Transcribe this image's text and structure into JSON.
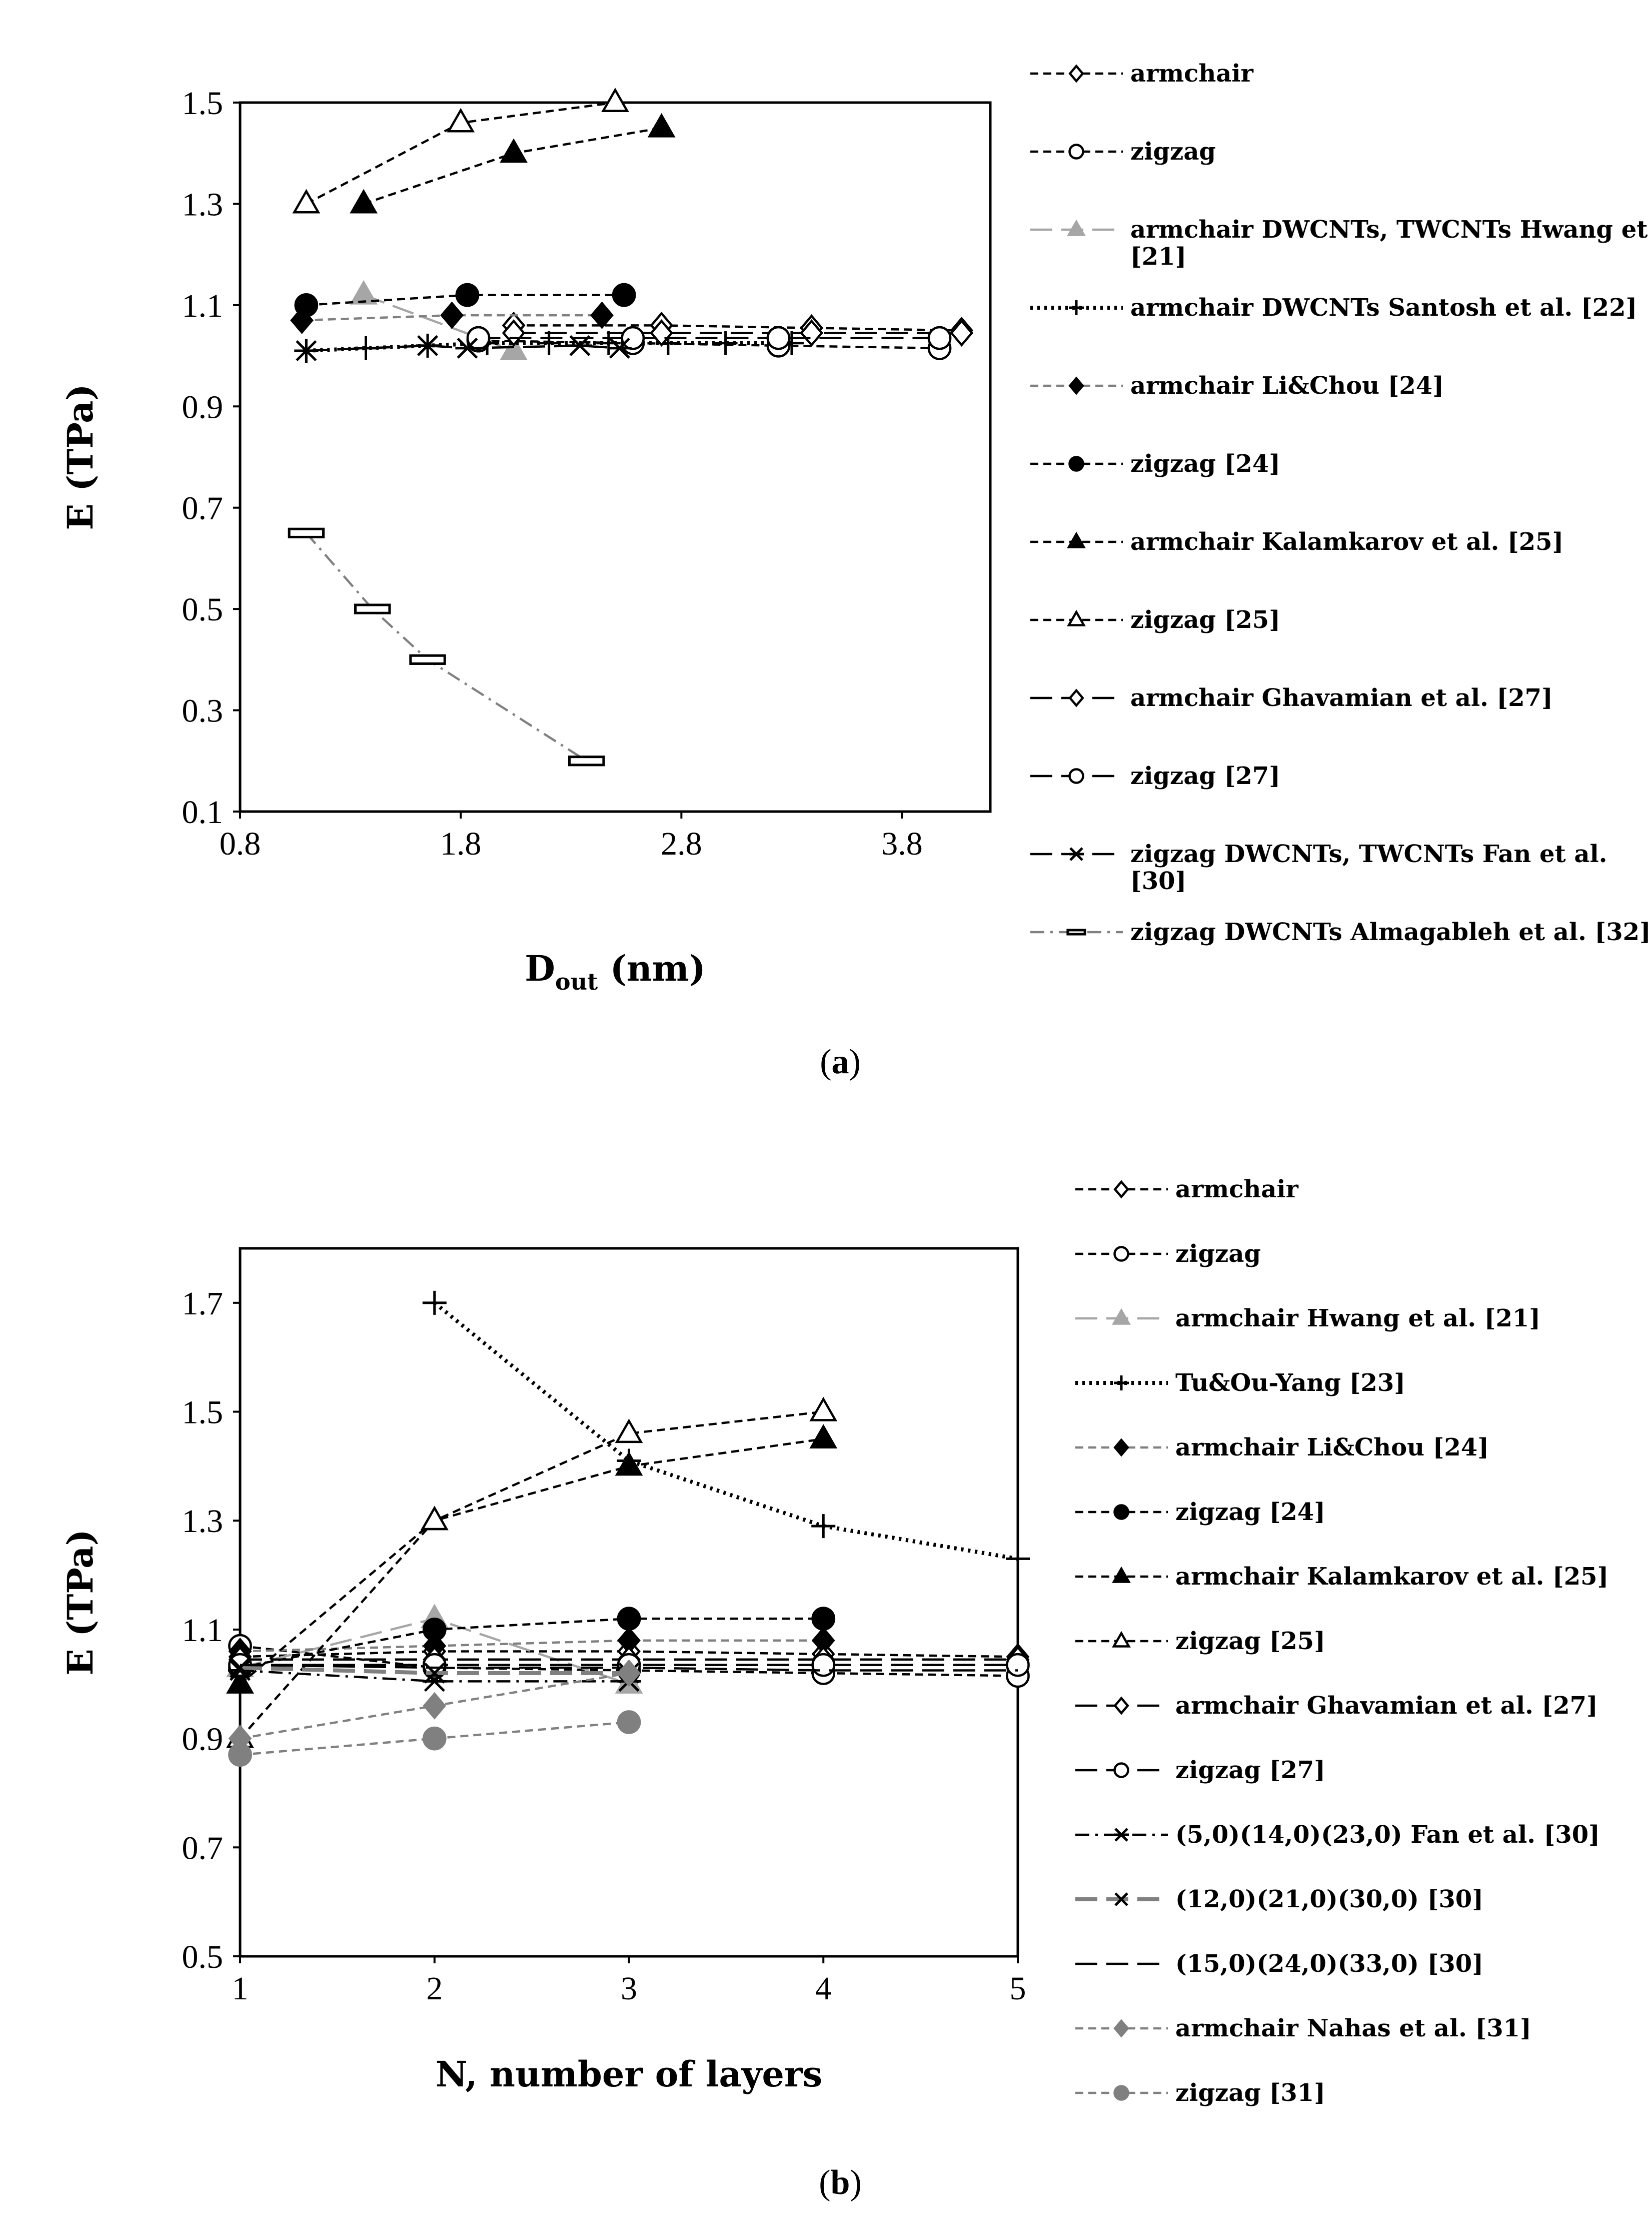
{
  "chart_data": [
    {
      "type": "line",
      "caption": "a",
      "xlabel_main": "D",
      "xlabel_sub": "out",
      "xlabel_unit": " (nm)",
      "ylabel": "E (TPa)",
      "xlim": [
        0.8,
        4.2
      ],
      "ylim": [
        0.1,
        1.5
      ],
      "xticks": [
        "0.8",
        "1.8",
        "2.8",
        "3.8"
      ],
      "yticks": [
        "0.1",
        "0.3",
        "0.5",
        "0.7",
        "0.9",
        "1.1",
        "1.3",
        "1.5"
      ],
      "series": [
        {
          "name": "armchair",
          "line": "dash",
          "marker": "diamond",
          "fill": "none",
          "color": "#000000",
          "x": [
            2.04,
            2.71,
            3.39,
            4.07
          ],
          "y": [
            1.06,
            1.06,
            1.055,
            1.05
          ]
        },
        {
          "name": "zigzag",
          "line": "dash",
          "marker": "circle",
          "fill": "none",
          "color": "#000000",
          "x": [
            1.88,
            2.58,
            3.24,
            3.97
          ],
          "y": [
            1.03,
            1.025,
            1.02,
            1.015
          ]
        },
        {
          "name": "armchair DWCNTs, TWCNTs Hwang et al. [21]",
          "line": "longdash",
          "marker": "triangle",
          "fill": "#a6a6a6",
          "color": "#a6a6a6",
          "x": [
            1.36,
            2.04
          ],
          "y": [
            1.12,
            1.01
          ]
        },
        {
          "name": "armchair DWCNTs Santosh et al. [22]",
          "line": "dot",
          "marker": "plus",
          "fill": "none",
          "color": "#000000",
          "x": [
            1.1,
            1.37,
            1.65,
            1.92,
            2.2,
            2.47,
            2.74,
            3.0,
            3.3
          ],
          "y": [
            1.01,
            1.015,
            1.02,
            1.025,
            1.025,
            1.025,
            1.025,
            1.025,
            1.025
          ]
        },
        {
          "name": "armchair Li&Chou [24]",
          "line": "dash",
          "marker": "diamond",
          "fill": "#000000",
          "color": "#808080",
          "x": [
            1.08,
            1.76,
            2.44
          ],
          "y": [
            1.07,
            1.08,
            1.08
          ]
        },
        {
          "name": "zigzag [24]",
          "line": "dash",
          "marker": "circle",
          "fill": "#000000",
          "color": "#000000",
          "x": [
            1.1,
            1.83,
            2.54
          ],
          "y": [
            1.1,
            1.12,
            1.12
          ]
        },
        {
          "name": "armchair Kalamkarov et al. [25]",
          "line": "dash",
          "marker": "triangle",
          "fill": "#000000",
          "color": "#000000",
          "x": [
            1.36,
            2.04,
            2.71
          ],
          "y": [
            1.3,
            1.4,
            1.45
          ]
        },
        {
          "name": "zigzag [25]",
          "line": "dash",
          "marker": "triangle",
          "fill": "none",
          "color": "#000000",
          "x": [
            1.1,
            1.8,
            2.5
          ],
          "y": [
            1.3,
            1.46,
            1.5
          ]
        },
        {
          "name": "armchair Ghavamian et al. [27]",
          "line": "longdash",
          "marker": "diamond",
          "fill": "none",
          "color": "#000000",
          "x": [
            2.04,
            2.71,
            3.39,
            4.07
          ],
          "y": [
            1.045,
            1.045,
            1.045,
            1.045
          ]
        },
        {
          "name": "zigzag [27]",
          "line": "longdash",
          "marker": "circle",
          "fill": "none",
          "color": "#000000",
          "x": [
            1.88,
            2.58,
            3.24,
            3.97
          ],
          "y": [
            1.035,
            1.035,
            1.035,
            1.035
          ]
        },
        {
          "name": "zigzag DWCNTs, TWCNTs Fan et al. [30]",
          "line": "longdash",
          "marker": "star",
          "fill": "none",
          "color": "#000000",
          "x": [
            1.1,
            1.65,
            1.83,
            2.34,
            2.52
          ],
          "y": [
            1.01,
            1.02,
            1.015,
            1.02,
            1.015
          ]
        },
        {
          "name": "zigzag DWCNTs Almagableh et al. [32]",
          "line": "dashdot",
          "marker": "rect",
          "fill": "none",
          "color": "#808080",
          "x": [
            1.1,
            1.4,
            1.65,
            2.37
          ],
          "y": [
            0.65,
            0.5,
            0.4,
            0.2
          ]
        }
      ]
    },
    {
      "type": "line",
      "caption": "b",
      "xlabel": "N, number of layers",
      "ylabel": "E (TPa)",
      "xlim": [
        1,
        5
      ],
      "ylim": [
        0.5,
        1.8
      ],
      "xticks": [
        "1",
        "2",
        "3",
        "4",
        "5"
      ],
      "yticks": [
        "0.5",
        "0.7",
        "0.9",
        "1.1",
        "1.3",
        "1.5",
        "1.7"
      ],
      "series": [
        {
          "name": "armchair",
          "line": "dash",
          "marker": "diamond",
          "fill": "none",
          "color": "#000000",
          "x": [
            1,
            2,
            3,
            4,
            5
          ],
          "y": [
            1.05,
            1.06,
            1.06,
            1.055,
            1.05
          ]
        },
        {
          "name": "zigzag",
          "line": "dash",
          "marker": "circle",
          "fill": "none",
          "color": "#000000",
          "x": [
            1,
            2,
            3,
            4,
            5
          ],
          "y": [
            1.07,
            1.03,
            1.025,
            1.02,
            1.015
          ]
        },
        {
          "name": "armchair Hwang et al. [21]",
          "line": "longdash",
          "marker": "triangle",
          "fill": "#a6a6a6",
          "color": "#a6a6a6",
          "x": [
            1,
            2,
            3
          ],
          "y": [
            1.03,
            1.12,
            1.0
          ]
        },
        {
          "name": "Tu&Ou-Yang [23]",
          "line": "dot",
          "marker": "plus",
          "fill": "none",
          "color": "#000000",
          "x": [
            2,
            3,
            4,
            5
          ],
          "y": [
            1.7,
            1.41,
            1.29,
            1.23
          ]
        },
        {
          "name": "armchair Li&Chou [24]",
          "line": "dash",
          "marker": "diamond",
          "fill": "#000000",
          "color": "#808080",
          "x": [
            1,
            2,
            3,
            4
          ],
          "y": [
            1.06,
            1.07,
            1.08,
            1.08
          ]
        },
        {
          "name": "zigzag [24]",
          "line": "dash",
          "marker": "circle",
          "fill": "#000000",
          "color": "#000000",
          "x": [
            1,
            2,
            3,
            4
          ],
          "y": [
            1.03,
            1.1,
            1.12,
            1.12
          ]
        },
        {
          "name": "armchair Kalamkarov et al. [25]",
          "line": "dash",
          "marker": "triangle",
          "fill": "#000000",
          "color": "#000000",
          "x": [
            1,
            2,
            3,
            4
          ],
          "y": [
            1.0,
            1.3,
            1.4,
            1.45
          ]
        },
        {
          "name": "zigzag [25]",
          "line": "dash",
          "marker": "triangle",
          "fill": "none",
          "color": "#000000",
          "x": [
            1,
            2,
            3,
            4
          ],
          "y": [
            0.9,
            1.3,
            1.46,
            1.5
          ]
        },
        {
          "name": "armchair Ghavamian et al. [27]",
          "line": "longdash",
          "marker": "diamond",
          "fill": "none",
          "color": "#000000",
          "x": [
            1,
            2,
            3,
            4,
            5
          ],
          "y": [
            1.045,
            1.045,
            1.045,
            1.045,
            1.045
          ]
        },
        {
          "name": "zigzag [27]",
          "line": "longdash",
          "marker": "circle",
          "fill": "none",
          "color": "#000000",
          "x": [
            1,
            2,
            3,
            4,
            5
          ],
          "y": [
            1.035,
            1.035,
            1.035,
            1.035,
            1.035
          ]
        },
        {
          "name": "(5,0)(14,0)(23,0) Fan et al. [30]",
          "line": "dashdot",
          "marker": "star",
          "fill": "none",
          "color": "#000000",
          "x": [
            1,
            2,
            3
          ],
          "y": [
            1.025,
            1.005,
            1.005
          ]
        },
        {
          "name": "(12,0)(21,0)(30,0) [30]",
          "line": "longdashgray",
          "marker": "cross",
          "fill": "none",
          "color": "#808080",
          "x": [
            1,
            2,
            3
          ],
          "y": [
            1.03,
            1.02,
            1.02
          ]
        },
        {
          "name": "(15,0)(24,0)(33,0) [30]",
          "line": "longdash",
          "marker": "none",
          "fill": "none",
          "color": "#000000",
          "x": [
            1,
            2,
            3,
            4,
            5
          ],
          "y": [
            1.035,
            1.03,
            1.03,
            1.025,
            1.025
          ]
        },
        {
          "name": "armchair Nahas et al. [31]",
          "line": "dash",
          "marker": "diamond",
          "fill": "#808080",
          "color": "#808080",
          "x": [
            1,
            2,
            3
          ],
          "y": [
            0.9,
            0.96,
            1.02
          ]
        },
        {
          "name": "zigzag [31]",
          "line": "dash",
          "marker": "circle",
          "fill": "#808080",
          "color": "#808080",
          "x": [
            1,
            2,
            3
          ],
          "y": [
            0.87,
            0.9,
            0.93
          ]
        }
      ]
    }
  ]
}
